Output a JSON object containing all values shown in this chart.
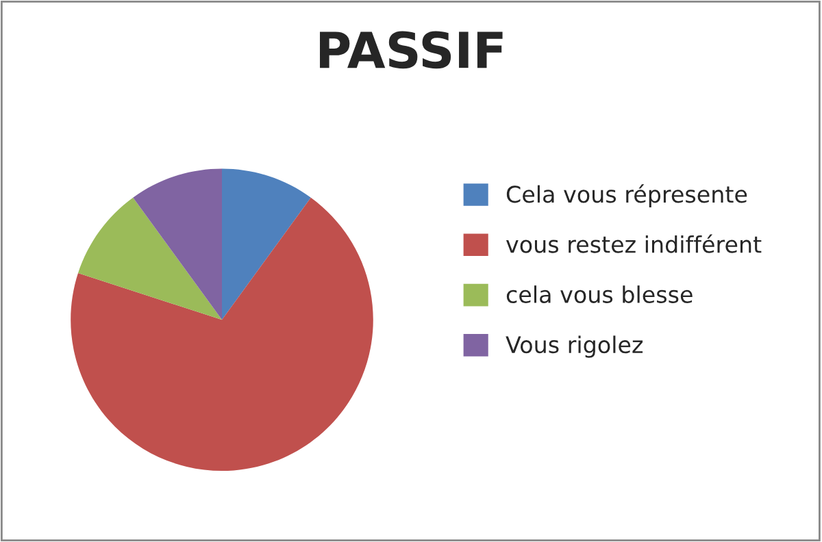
{
  "chart_data": {
    "type": "pie",
    "title": "PASSIF",
    "categories": [
      "Cela vous répresente",
      "vous restez indifférent",
      "cela vous blesse",
      "Vous rigolez"
    ],
    "values": [
      10,
      70,
      10,
      10
    ],
    "colors": [
      "#4f81bd",
      "#c0504d",
      "#9bbb59",
      "#8064a2"
    ],
    "legend": "right"
  }
}
